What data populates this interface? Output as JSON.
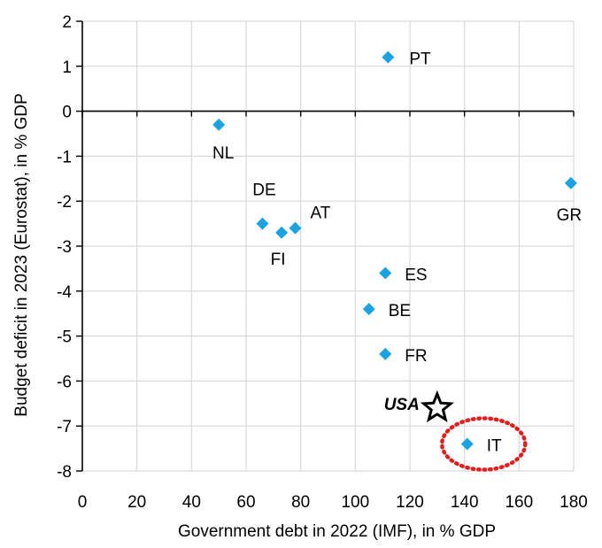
{
  "chart_data": {
    "type": "scatter",
    "title": "",
    "xlabel": "Government debt in 2022 (IMF), in % GDP",
    "ylabel": "Budget deficit in 2023 (Eurostat), in % GDP",
    "xlim": [
      0,
      180
    ],
    "ylim": [
      -8,
      2
    ],
    "xticks": [
      "0",
      "20",
      "40",
      "60",
      "80",
      "100",
      "120",
      "140",
      "160",
      "180"
    ],
    "yticks": [
      "2",
      "1",
      "0",
      "-1",
      "-2",
      "-3",
      "-4",
      "-5",
      "-6",
      "-7",
      "-8"
    ],
    "grid": true,
    "marker_color": "#1aa3e0",
    "highlight_color": "#e02020",
    "points": [
      {
        "label": "NL",
        "x": 50,
        "y": -0.3
      },
      {
        "label": "DE",
        "x": 66,
        "y": -2.5
      },
      {
        "label": "FI",
        "x": 73,
        "y": -2.7
      },
      {
        "label": "AT",
        "x": 78,
        "y": -2.6
      },
      {
        "label": "PT",
        "x": 112,
        "y": 1.2
      },
      {
        "label": "ES",
        "x": 111,
        "y": -3.6
      },
      {
        "label": "BE",
        "x": 105,
        "y": -4.4
      },
      {
        "label": "FR",
        "x": 111,
        "y": -5.4
      },
      {
        "label": "IT",
        "x": 141,
        "y": -7.4
      },
      {
        "label": "GR",
        "x": 179,
        "y": -1.6
      }
    ],
    "annotations": [
      {
        "label": "USA",
        "x": 130,
        "y": -6.6,
        "marker": "star-outline"
      },
      {
        "label": "",
        "x": 147,
        "y": -7.4,
        "marker": "dotted-circle-highlight"
      }
    ]
  }
}
